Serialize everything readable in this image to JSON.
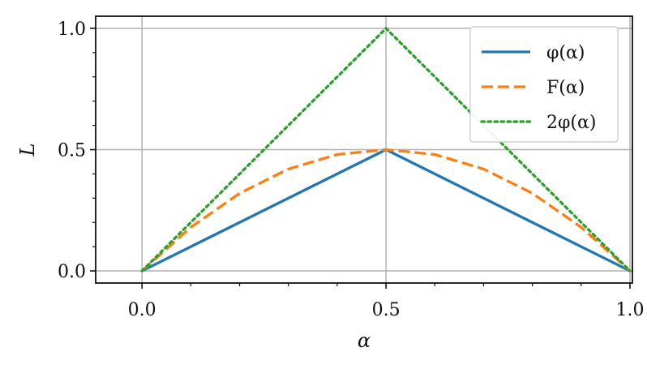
{
  "chart_data": {
    "type": "line",
    "title": "",
    "xlabel": "α",
    "ylabel": "L",
    "xlim": [
      -0.095,
      1.005
    ],
    "ylim": [
      -0.05,
      1.05
    ],
    "grid": true,
    "legend_position": "top-right",
    "x_ticks": [
      0.0,
      0.5,
      1.0
    ],
    "x_tick_labels": [
      "0.0",
      "0.5",
      "1.0"
    ],
    "y_ticks": [
      0.0,
      0.5,
      1.0
    ],
    "y_tick_labels": [
      "0.0",
      "0.5",
      "1.0"
    ],
    "series": [
      {
        "name": "φ(α)",
        "color": "#1f77b4",
        "line_style": "solid",
        "x": [
          0.0,
          0.5,
          1.0
        ],
        "values": [
          0.0,
          0.5,
          0.0
        ]
      },
      {
        "name": "F(α)",
        "color": "#ff7f0e",
        "line_style": "dashed",
        "x": [
          0.0,
          0.1,
          0.2,
          0.3,
          0.4,
          0.5,
          0.6,
          0.7,
          0.8,
          0.9,
          1.0
        ],
        "values": [
          0.0,
          0.18,
          0.32,
          0.42,
          0.48,
          0.5,
          0.48,
          0.42,
          0.32,
          0.18,
          0.0
        ]
      },
      {
        "name": "2φ(α)",
        "color": "#2ca02c",
        "line_style": "dotted",
        "x": [
          0.0,
          0.5,
          1.0
        ],
        "values": [
          0.0,
          1.0,
          0.0
        ]
      }
    ]
  }
}
